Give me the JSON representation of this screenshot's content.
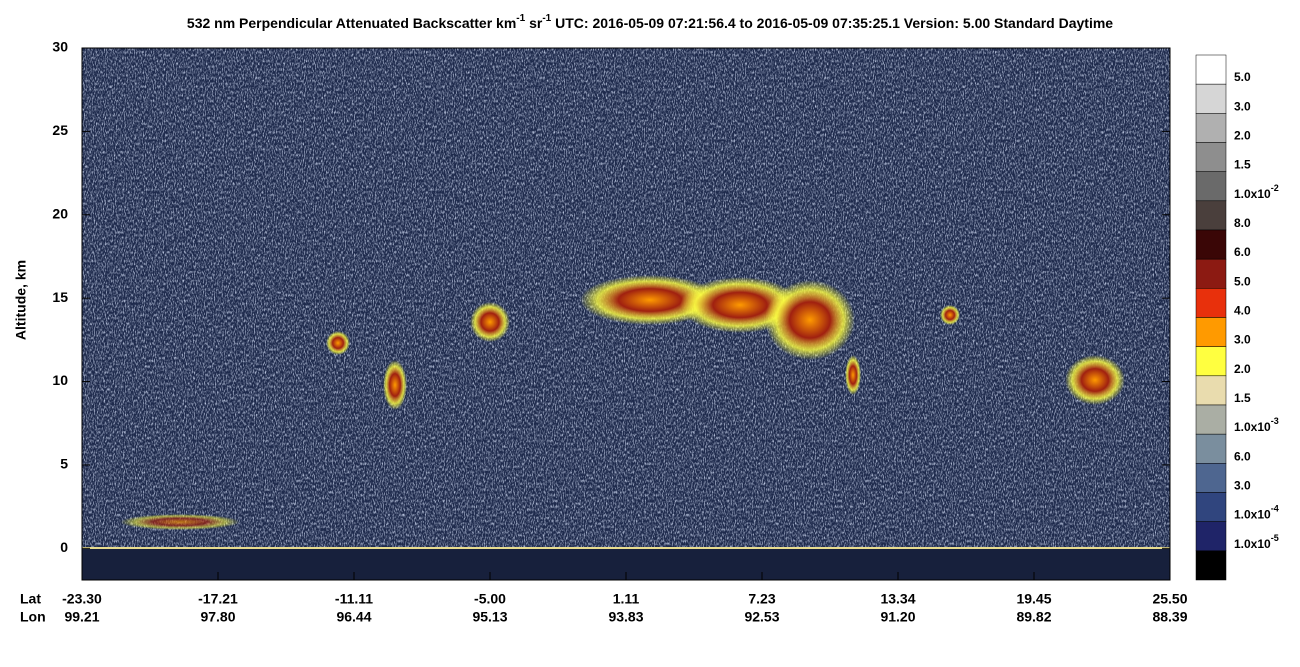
{
  "chart_data": {
    "type": "curtain",
    "title_parts": [
      "532 nm Perpendicular Attenuated Backscatter km",
      "-1",
      " sr",
      "-1",
      "  UTC: 2016-05-09 07:21:56.4 to 2016-05-09 07:35:25.1  Version: 5.00 Standard Daytime"
    ],
    "y_label": "Altitude, km",
    "ylim": [
      -1.9,
      30
    ],
    "yticks": [
      0,
      5,
      10,
      15,
      20,
      25,
      30
    ],
    "x_row_labels": [
      "Lat",
      "Lon"
    ],
    "lat": [
      "-23.30",
      "-17.21",
      "-11.11",
      "-5.00",
      "1.11",
      "7.23",
      "13.34",
      "19.45",
      "25.50"
    ],
    "lon": [
      "99.21",
      "97.80",
      "96.44",
      "95.13",
      "93.83",
      "92.53",
      "91.20",
      "89.82",
      "88.39"
    ],
    "colorbar_colors": [
      "#ffffff",
      "#d6d6d6",
      "#b0b0b0",
      "#8e8e8e",
      "#6a6a6a",
      "#4a3f3c",
      "#3a0606",
      "#8c1a12",
      "#e8300c",
      "#ff9a00",
      "#ffff40",
      "#e9dcae",
      "#aaaea4",
      "#7a8e9e",
      "#4e6690",
      "#30457e",
      "#1f2468",
      "#000000"
    ],
    "colorbar_labels": [
      {
        "text": "5.0"
      },
      {
        "text": "3.0"
      },
      {
        "text": "2.0"
      },
      {
        "text": "1.5"
      },
      {
        "text": "1.0x10",
        "exp": "-2"
      },
      {
        "text": "8.0"
      },
      {
        "text": "6.0"
      },
      {
        "text": "5.0"
      },
      {
        "text": "4.0"
      },
      {
        "text": "3.0"
      },
      {
        "text": "2.0"
      },
      {
        "text": "1.5"
      },
      {
        "text": "1.0x10",
        "exp": "-3"
      },
      {
        "text": "6.0"
      },
      {
        "text": "3.0"
      },
      {
        "text": "1.0x10",
        "exp": "-4"
      },
      {
        "text": "1.0x10",
        "exp": "-5"
      }
    ]
  }
}
